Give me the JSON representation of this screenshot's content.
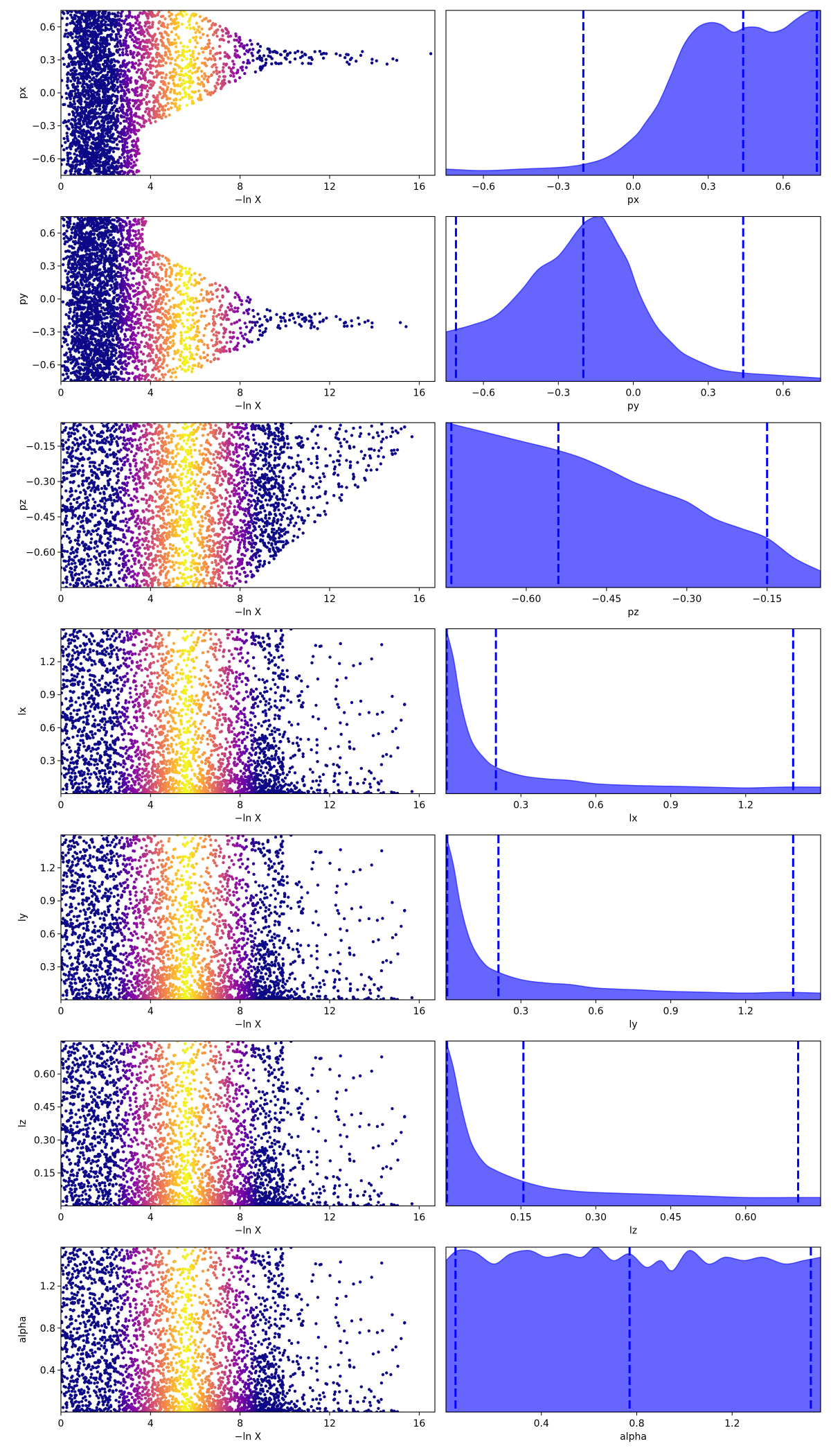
{
  "chart_data": [
    {
      "type": "scatter",
      "xlabel": "−ln X",
      "ylabel": "px",
      "xlim": [
        0,
        16.7
      ],
      "ylim": [
        -0.75,
        0.75
      ],
      "xticks": [
        0,
        4,
        8,
        12,
        16
      ],
      "yticks": [
        -0.6,
        -0.3,
        0.0,
        0.3,
        0.6
      ],
      "ytick_labels": [
        "−0.6",
        "−0.3",
        "0.0",
        "0.3",
        "0.6"
      ],
      "profile": {
        "kind": "converge",
        "center": 0.32,
        "anchor": 3.5,
        "sigma_end": 0.06
      },
      "colormap": "plasma",
      "color_peak_lnx": 5.6
    },
    {
      "type": "area",
      "xlabel": "px",
      "xlim": [
        -0.75,
        0.75
      ],
      "xticks": [
        -0.6,
        -0.3,
        0.0,
        0.3,
        0.6
      ],
      "xtick_labels": [
        "−0.6",
        "−0.3",
        "0.0",
        "0.3",
        "0.6"
      ],
      "color": "#0000ff",
      "quantile_lines": [
        -0.2,
        0.44,
        0.735
      ],
      "density": {
        "x": [
          -0.75,
          -0.6,
          -0.45,
          -0.3,
          -0.2,
          -0.1,
          0.0,
          0.05,
          0.1,
          0.15,
          0.2,
          0.25,
          0.3,
          0.35,
          0.4,
          0.45,
          0.5,
          0.55,
          0.6,
          0.65,
          0.7,
          0.75
        ],
        "y": [
          0.04,
          0.03,
          0.04,
          0.05,
          0.07,
          0.12,
          0.24,
          0.34,
          0.46,
          0.64,
          0.83,
          0.94,
          0.98,
          0.97,
          0.92,
          0.95,
          0.95,
          0.92,
          0.94,
          1.0,
          1.05,
          1.06
        ]
      }
    },
    {
      "type": "scatter",
      "xlabel": "−ln X",
      "ylabel": "py",
      "xlim": [
        0,
        16.7
      ],
      "ylim": [
        -0.75,
        0.75
      ],
      "xticks": [
        0,
        4,
        8,
        12,
        16
      ],
      "yticks": [
        -0.6,
        -0.3,
        0.0,
        0.3,
        0.6
      ],
      "ytick_labels": [
        "−0.6",
        "−0.3",
        "0.0",
        "0.3",
        "0.6"
      ],
      "profile": {
        "kind": "converge",
        "center": -0.2,
        "anchor": 3.8,
        "sigma_end": 0.07
      },
      "colormap": "plasma",
      "color_peak_lnx": 5.6
    },
    {
      "type": "area",
      "xlabel": "py",
      "xlim": [
        -0.75,
        0.75
      ],
      "xticks": [
        -0.6,
        -0.3,
        0.0,
        0.3,
        0.6
      ],
      "xtick_labels": [
        "−0.6",
        "−0.3",
        "0.0",
        "0.3",
        "0.6"
      ],
      "color": "#0000ff",
      "quantile_lines": [
        -0.71,
        -0.2,
        0.44
      ],
      "density": {
        "x": [
          -0.75,
          -0.65,
          -0.55,
          -0.45,
          -0.38,
          -0.3,
          -0.22,
          -0.18,
          -0.13,
          -0.1,
          -0.06,
          -0.02,
          0.02,
          0.06,
          0.1,
          0.15,
          0.2,
          0.28,
          0.35,
          0.45,
          0.55,
          0.65,
          0.75
        ],
        "y": [
          0.3,
          0.34,
          0.4,
          0.55,
          0.68,
          0.76,
          0.92,
          0.98,
          1.0,
          0.94,
          0.83,
          0.72,
          0.55,
          0.42,
          0.32,
          0.24,
          0.17,
          0.11,
          0.07,
          0.05,
          0.04,
          0.03,
          0.02
        ]
      }
    },
    {
      "type": "scatter",
      "xlabel": "−ln X",
      "ylabel": "pz",
      "xlim": [
        0,
        16.7
      ],
      "ylim": [
        -0.75,
        -0.05
      ],
      "xticks": [
        0,
        4,
        8,
        12,
        16
      ],
      "yticks": [
        -0.6,
        -0.45,
        -0.3,
        -0.15
      ],
      "ytick_labels": [
        "−0.60",
        "−0.45",
        "−0.30",
        "−0.15"
      ],
      "profile": {
        "kind": "wedge",
        "fill_until": 8.0,
        "end_lnx": 16
      },
      "colormap": "plasma",
      "color_peak_lnx": 5.6
    },
    {
      "type": "area",
      "xlabel": "pz",
      "xlim": [
        -0.75,
        -0.05
      ],
      "xticks": [
        -0.6,
        -0.45,
        -0.3,
        -0.15
      ],
      "xtick_labels": [
        "−0.60",
        "−0.45",
        "−0.30",
        "−0.15"
      ],
      "color": "#0000ff",
      "quantile_lines": [
        -0.74,
        -0.54,
        -0.15
      ],
      "density": {
        "x": [
          -0.75,
          -0.7,
          -0.65,
          -0.6,
          -0.55,
          -0.5,
          -0.45,
          -0.4,
          -0.35,
          -0.3,
          -0.25,
          -0.2,
          -0.15,
          -0.1,
          -0.05
        ],
        "y": [
          1.0,
          0.96,
          0.92,
          0.88,
          0.84,
          0.79,
          0.72,
          0.64,
          0.58,
          0.52,
          0.42,
          0.36,
          0.3,
          0.18,
          0.1
        ]
      }
    },
    {
      "type": "scatter",
      "xlabel": "−ln X",
      "ylabel": "lx",
      "xlim": [
        0,
        16.7
      ],
      "ylim": [
        0.0,
        1.5
      ],
      "xticks": [
        0,
        4,
        8,
        12,
        16
      ],
      "yticks": [
        0.3,
        0.6,
        0.9,
        1.2
      ],
      "ytick_labels": [
        "0.3",
        "0.6",
        "0.9",
        "1.2"
      ],
      "profile": {
        "kind": "spread"
      },
      "colormap": "plasma",
      "color_peak_lnx": 5.6
    },
    {
      "type": "area",
      "xlabel": "lx",
      "xlim": [
        0.0,
        1.5
      ],
      "xticks": [
        0.3,
        0.6,
        0.9,
        1.2
      ],
      "xtick_labels": [
        "0.3",
        "0.6",
        "0.9",
        "1.2"
      ],
      "color": "#0000ff",
      "quantile_lines": [
        0.003,
        0.2,
        1.39
      ],
      "density": {
        "x": [
          0.0,
          0.03,
          0.06,
          0.1,
          0.15,
          0.2,
          0.3,
          0.4,
          0.5,
          0.6,
          0.75,
          0.9,
          1.05,
          1.2,
          1.35,
          1.5
        ],
        "y": [
          1.0,
          0.82,
          0.55,
          0.33,
          0.22,
          0.16,
          0.11,
          0.09,
          0.08,
          0.06,
          0.05,
          0.045,
          0.04,
          0.035,
          0.04,
          0.04
        ]
      }
    },
    {
      "type": "scatter",
      "xlabel": "−ln X",
      "ylabel": "ly",
      "xlim": [
        0,
        16.7
      ],
      "ylim": [
        0.0,
        1.5
      ],
      "xticks": [
        0,
        4,
        8,
        12,
        16
      ],
      "yticks": [
        0.3,
        0.6,
        0.9,
        1.2
      ],
      "ytick_labels": [
        "0.3",
        "0.6",
        "0.9",
        "1.2"
      ],
      "profile": {
        "kind": "spread"
      },
      "colormap": "plasma",
      "color_peak_lnx": 5.6
    },
    {
      "type": "area",
      "xlabel": "ly",
      "xlim": [
        0.0,
        1.5
      ],
      "xticks": [
        0.3,
        0.6,
        0.9,
        1.2
      ],
      "xtick_labels": [
        "0.3",
        "0.6",
        "0.9",
        "1.2"
      ],
      "color": "#0000ff",
      "quantile_lines": [
        0.005,
        0.21,
        1.39
      ],
      "density": {
        "x": [
          0.0,
          0.03,
          0.06,
          0.1,
          0.15,
          0.2,
          0.3,
          0.4,
          0.5,
          0.6,
          0.75,
          0.9,
          1.05,
          1.2,
          1.35,
          1.5
        ],
        "y": [
          0.98,
          0.8,
          0.55,
          0.34,
          0.22,
          0.17,
          0.12,
          0.1,
          0.09,
          0.07,
          0.06,
          0.05,
          0.045,
          0.04,
          0.045,
          0.04
        ]
      }
    },
    {
      "type": "scatter",
      "xlabel": "−ln X",
      "ylabel": "lz",
      "xlim": [
        0,
        16.7
      ],
      "ylim": [
        0.0,
        0.75
      ],
      "xticks": [
        0,
        4,
        8,
        12,
        16
      ],
      "yticks": [
        0.15,
        0.3,
        0.45,
        0.6
      ],
      "ytick_labels": [
        "0.15",
        "0.30",
        "0.45",
        "0.60"
      ],
      "profile": {
        "kind": "spread"
      },
      "colormap": "plasma",
      "color_peak_lnx": 5.6
    },
    {
      "type": "area",
      "xlabel": "lz",
      "xlim": [
        0.0,
        0.75
      ],
      "xticks": [
        0.15,
        0.3,
        0.45,
        0.6
      ],
      "xtick_labels": [
        "0.15",
        "0.30",
        "0.45",
        "0.60"
      ],
      "color": "#0000ff",
      "quantile_lines": [
        0.002,
        0.155,
        0.705
      ],
      "density": {
        "x": [
          0.0,
          0.015,
          0.03,
          0.05,
          0.075,
          0.1,
          0.15,
          0.2,
          0.25,
          0.3,
          0.4,
          0.5,
          0.6,
          0.7,
          0.75
        ],
        "y": [
          0.98,
          0.82,
          0.6,
          0.38,
          0.26,
          0.21,
          0.15,
          0.11,
          0.09,
          0.08,
          0.07,
          0.06,
          0.05,
          0.05,
          0.05
        ]
      }
    },
    {
      "type": "scatter",
      "xlabel": "−ln X",
      "ylabel": "alpha",
      "xlim": [
        0,
        16.7
      ],
      "ylim": [
        0.0,
        1.571
      ],
      "xticks": [
        0,
        4,
        8,
        12,
        16
      ],
      "yticks": [
        0.4,
        0.8,
        1.2
      ],
      "ytick_labels": [
        "0.4",
        "0.8",
        "1.2"
      ],
      "profile": {
        "kind": "spread"
      },
      "colormap": "plasma",
      "color_peak_lnx": 5.6
    },
    {
      "type": "area",
      "xlabel": "alpha",
      "xlim": [
        0.0,
        1.571
      ],
      "xticks": [
        0.4,
        0.8,
        1.2
      ],
      "xtick_labels": [
        "0.4",
        "0.8",
        "1.2"
      ],
      "color": "#0000ff",
      "quantile_lines": [
        0.04,
        0.77,
        1.53
      ],
      "density": {
        "x": [
          0.0,
          0.05,
          0.12,
          0.2,
          0.27,
          0.35,
          0.42,
          0.5,
          0.57,
          0.63,
          0.7,
          0.77,
          0.84,
          0.9,
          0.95,
          1.02,
          1.1,
          1.17,
          1.25,
          1.33,
          1.42,
          1.5,
          1.571
        ],
        "y": [
          0.9,
          0.96,
          0.95,
          0.88,
          0.94,
          0.96,
          0.92,
          0.94,
          0.92,
          0.98,
          0.9,
          0.94,
          0.86,
          0.9,
          0.84,
          0.96,
          0.88,
          0.92,
          0.9,
          0.92,
          0.88,
          0.9,
          0.92
        ]
      }
    }
  ]
}
